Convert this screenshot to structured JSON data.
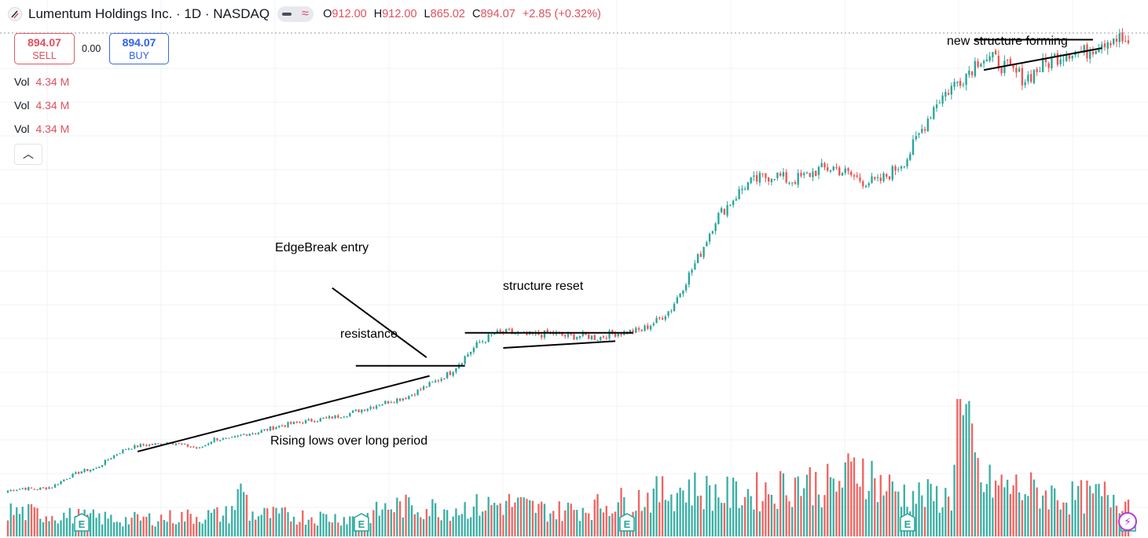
{
  "header": {
    "title": "Lumentum Holdings Inc. · 1D · NASDAQ",
    "ohlc": [
      {
        "k": "O",
        "v": "912.00"
      },
      {
        "k": "H",
        "v": "912.00"
      },
      {
        "k": "L",
        "v": "865.02"
      },
      {
        "k": "C",
        "v": "894.07"
      },
      {
        "k": "",
        "v": "+2.85 (+0.32%)"
      }
    ]
  },
  "trade": {
    "sell_price": "894.07",
    "sell_label": "SELL",
    "spread": "0.00",
    "buy_price": "894.07",
    "buy_label": "BUY"
  },
  "volume_rows": [
    {
      "label": "Vol",
      "value": "4.34 M"
    },
    {
      "label": "Vol",
      "value": "4.34 M"
    },
    {
      "label": "Vol",
      "value": "4.34 M"
    }
  ],
  "collapse_icon": "chevron-up-icon",
  "annotations": {
    "edgebreak": "EdgeBreak entry",
    "resistance": "resistance",
    "rising_lows": "Rising lows over long period",
    "structure_reset": "structure reset",
    "new_structure": "new structure forming"
  },
  "earnings_marker": "E",
  "colors": {
    "up": "#26a69a",
    "down": "#ef5350",
    "grid": "#f0f3fa",
    "text": "#131722"
  },
  "chart_data": {
    "type": "candlestick",
    "title": "Lumentum Holdings Inc. · 1D · NASDAQ",
    "ylim": [
      50,
      912
    ],
    "last_close": 894.07,
    "path": [
      [
        0,
        95
      ],
      [
        5,
        100
      ],
      [
        10,
        98
      ],
      [
        15,
        102
      ],
      [
        20,
        118
      ],
      [
        25,
        130
      ],
      [
        30,
        135
      ],
      [
        35,
        155
      ],
      [
        40,
        170
      ],
      [
        45,
        176
      ],
      [
        50,
        178
      ],
      [
        55,
        182
      ],
      [
        60,
        176
      ],
      [
        65,
        170
      ],
      [
        70,
        188
      ],
      [
        75,
        186
      ],
      [
        80,
        196
      ],
      [
        85,
        200
      ],
      [
        90,
        208
      ],
      [
        95,
        214
      ],
      [
        100,
        218
      ],
      [
        105,
        222
      ],
      [
        110,
        226
      ],
      [
        115,
        232
      ],
      [
        120,
        240
      ],
      [
        125,
        248
      ],
      [
        130,
        256
      ],
      [
        135,
        262
      ],
      [
        140,
        276
      ],
      [
        145,
        290
      ],
      [
        150,
        306
      ],
      [
        155,
        334
      ],
      [
        160,
        360
      ],
      [
        165,
        375
      ],
      [
        170,
        378
      ],
      [
        175,
        372
      ],
      [
        180,
        374
      ],
      [
        185,
        376
      ],
      [
        190,
        370
      ],
      [
        195,
        372
      ],
      [
        200,
        368
      ],
      [
        205,
        376
      ],
      [
        210,
        378
      ],
      [
        215,
        382
      ],
      [
        220,
        398
      ],
      [
        225,
        420
      ],
      [
        230,
        470
      ],
      [
        235,
        520
      ],
      [
        240,
        580
      ],
      [
        245,
        610
      ],
      [
        250,
        640
      ],
      [
        255,
        652
      ],
      [
        260,
        660
      ],
      [
        265,
        648
      ],
      [
        270,
        655
      ],
      [
        275,
        668
      ],
      [
        280,
        672
      ],
      [
        285,
        660
      ],
      [
        290,
        648
      ],
      [
        295,
        645
      ],
      [
        300,
        665
      ],
      [
        305,
        690
      ],
      [
        310,
        740
      ],
      [
        315,
        790
      ],
      [
        320,
        815
      ],
      [
        325,
        840
      ],
      [
        330,
        870
      ],
      [
        335,
        862
      ],
      [
        340,
        845
      ],
      [
        345,
        830
      ],
      [
        350,
        850
      ],
      [
        355,
        868
      ],
      [
        360,
        880
      ],
      [
        365,
        876
      ],
      [
        370,
        895
      ],
      [
        375,
        905
      ],
      [
        380,
        894.07
      ]
    ],
    "volume_path": [
      [
        0,
        0.18
      ],
      [
        40,
        0.12
      ],
      [
        75,
        0.16
      ],
      [
        80,
        0.36
      ],
      [
        82,
        0.16
      ],
      [
        120,
        0.13
      ],
      [
        130,
        0.22
      ],
      [
        150,
        0.2
      ],
      [
        170,
        0.24
      ],
      [
        185,
        0.18
      ],
      [
        200,
        0.22
      ],
      [
        215,
        0.28
      ],
      [
        230,
        0.35
      ],
      [
        245,
        0.3
      ],
      [
        260,
        0.34
      ],
      [
        268,
        0.4
      ],
      [
        280,
        0.36
      ],
      [
        290,
        0.52
      ],
      [
        295,
        0.38
      ],
      [
        305,
        0.3
      ],
      [
        320,
        0.28
      ],
      [
        322,
        1.0
      ],
      [
        330,
        0.38
      ],
      [
        345,
        0.34
      ],
      [
        360,
        0.28
      ],
      [
        375,
        0.3
      ],
      [
        380,
        0.26
      ]
    ],
    "earnings_bars": [
      25,
      120,
      210,
      305,
      380
    ],
    "trendlines": [
      {
        "name": "rising-lows",
        "points": [
          [
            44,
            165
          ],
          [
            143,
            300
          ]
        ]
      },
      {
        "name": "resistance",
        "points": [
          [
            118,
            318
          ],
          [
            155,
            318
          ]
        ]
      },
      {
        "name": "structure-reset-top",
        "points": [
          [
            155,
            377
          ],
          [
            212,
            377
          ]
        ]
      },
      {
        "name": "structure-reset-bottom",
        "points": [
          [
            168,
            350
          ],
          [
            206,
            362
          ]
        ]
      },
      {
        "name": "new-structure-top",
        "points": [
          [
            328,
            900
          ],
          [
            368,
            900
          ]
        ]
      },
      {
        "name": "new-structure-bottom",
        "points": [
          [
            331,
            846
          ],
          [
            371,
            885
          ]
        ]
      },
      {
        "name": "edgebreak-pointer",
        "points": [
          [
            110,
            457
          ],
          [
            142,
            333
          ]
        ]
      }
    ]
  }
}
